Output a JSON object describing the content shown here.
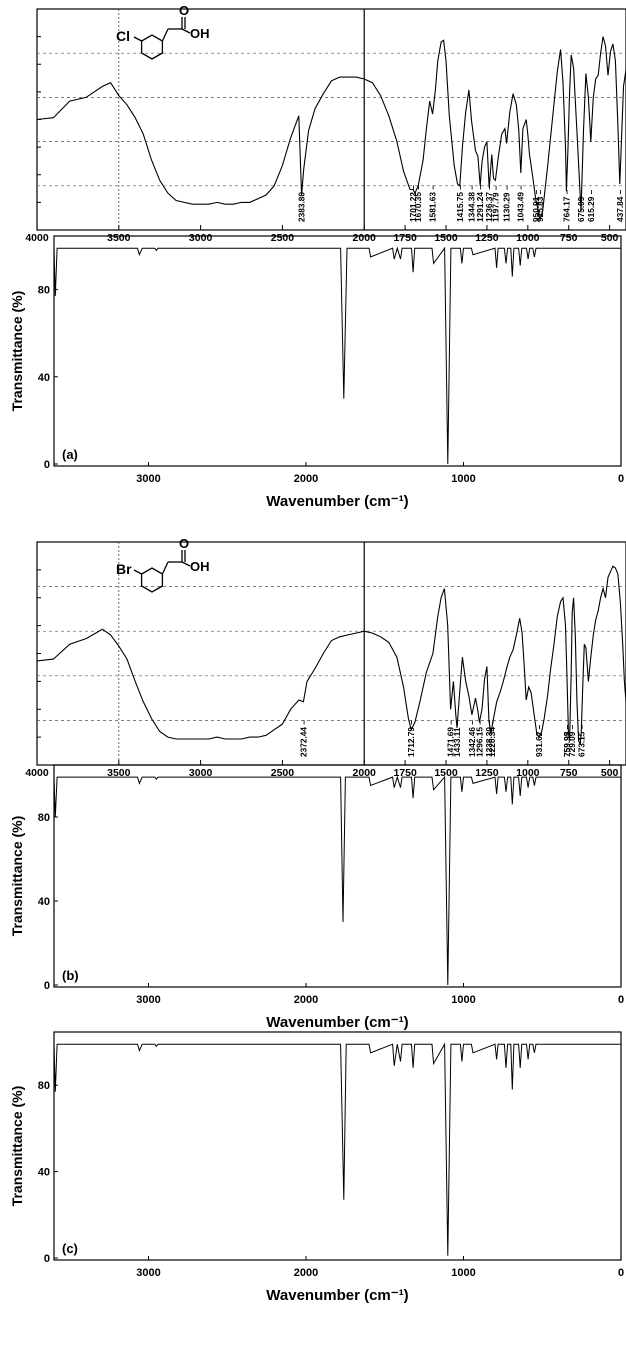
{
  "chart_data": [
    {
      "type": "line",
      "panel": "experimental-chloro",
      "xlim": [
        4000,
        400
      ],
      "x_ticks": [
        4000,
        3500,
        3000,
        2500,
        2000,
        1750,
        1500,
        1250,
        1000,
        750,
        500
      ],
      "structure_label": "Cl",
      "structure_acid": "OH",
      "structure_carbonyl": "O",
      "series": [
        {
          "x": [
            4000,
            3900,
            3800,
            3700,
            3600,
            3550,
            3500,
            3450,
            3400,
            3350,
            3300,
            3250,
            3200,
            3150,
            3100,
            3050,
            3000,
            2950,
            2900,
            2850,
            2800,
            2750,
            2700,
            2650,
            2600,
            2550,
            2500,
            2450,
            2400,
            2383,
            2370,
            2340,
            2300,
            2250,
            2200,
            2150,
            2100,
            2050,
            2000,
            1950,
            1900,
            1850,
            1800,
            1760,
            1720,
            1701,
            1690,
            1670,
            1640,
            1620,
            1600,
            1582,
            1565,
            1550,
            1530,
            1515,
            1500,
            1480,
            1450,
            1430,
            1416,
            1400,
            1380,
            1360,
            1344,
            1320,
            1305,
            1291,
            1280,
            1265,
            1250,
            1236,
            1220,
            1210,
            1198,
            1180,
            1160,
            1140,
            1130,
            1110,
            1090,
            1070,
            1055,
            1043,
            1030,
            1010,
            1000,
            990,
            970,
            951,
            935,
            926,
            910,
            880,
            850,
            820,
            800,
            785,
            770,
            764,
            755,
            745,
            735,
            720,
            705,
            690,
            675,
            660,
            645,
            630,
            615,
            600,
            585,
            570,
            555,
            540,
            525,
            510,
            495,
            480,
            465,
            450,
            438,
            425,
            415,
            400
          ],
          "y": [
            -6.0,
            -5.9,
            -5.0,
            -4.8,
            -4.2,
            -4.0,
            -4.7,
            -5.2,
            -5.9,
            -6.8,
            -8.2,
            -9.3,
            -10.0,
            -10.4,
            -10.5,
            -10.6,
            -10.6,
            -10.6,
            -10.5,
            -10.6,
            -10.6,
            -10.5,
            -10.5,
            -10.3,
            -10.1,
            -9.6,
            -8.5,
            -7.0,
            -5.8,
            -10.1,
            -8.7,
            -6.6,
            -5.4,
            -4.6,
            -3.9,
            -3.7,
            -3.7,
            -3.7,
            -3.8,
            -4.0,
            -4.7,
            -5.8,
            -7.2,
            -8.8,
            -9.8,
            -9.8,
            -10.0,
            -9.6,
            -8.2,
            -6.5,
            -5.0,
            -5.7,
            -4.4,
            -2.8,
            -1.8,
            -1.7,
            -2.8,
            -5.8,
            -8.5,
            -9.5,
            -9.6,
            -7.5,
            -5.6,
            -4.4,
            -6.1,
            -7.7,
            -8.0,
            -9.6,
            -8.3,
            -7.5,
            -7.2,
            -9.7,
            -7.9,
            -9.2,
            -9.3,
            -8.0,
            -6.8,
            -6.5,
            -7.3,
            -5.6,
            -4.6,
            -5.2,
            -6.6,
            -8.9,
            -6.5,
            -6.0,
            -6.8,
            -7.9,
            -9.1,
            -10.4,
            -11.0,
            -11.4,
            -11.0,
            -8.6,
            -6.0,
            -3.4,
            -2.2,
            -4.0,
            -7.5,
            -9.9,
            -7.7,
            -4.5,
            -2.5,
            -3.2,
            -5.8,
            -8.4,
            -11.0,
            -6.6,
            -3.5,
            -4.8,
            -7.2,
            -4.8,
            -3.8,
            -3.6,
            -2.4,
            -1.5,
            -2.0,
            -3.6,
            -2.3,
            -1.9,
            -2.8,
            -6.2,
            -9.5,
            -6.5,
            -4.2,
            -3.3
          ]
        }
      ],
      "annotations": [
        "2383.80",
        "1701.22",
        "1670.35",
        "1581.63",
        "1415.75",
        "1344.38",
        "1291.24",
        "1236.37",
        "1197.79",
        "1130.29",
        "1043.49",
        "950.91",
        "925.83",
        "764.17",
        "675.09",
        "615.29",
        "437.84"
      ]
    },
    {
      "type": "line",
      "panel": "computed-a",
      "xlim": [
        3600,
        0
      ],
      "ylim": [
        0,
        100
      ],
      "x_ticks": [
        3000,
        2000,
        1000,
        0
      ],
      "y_ticks": [
        0,
        40,
        80
      ],
      "xlabel": "Wavenumber (cm⁻¹)",
      "ylabel": "Transmittance (%)",
      "panel_label": "(a)",
      "series": [
        {
          "x": [
            3600,
            3592,
            3580,
            3560,
            3540,
            3070,
            3058,
            3040,
            2960,
            2950,
            2940,
            1780,
            1760,
            1740,
            1600,
            1590,
            1450,
            1440,
            1420,
            1400,
            1390,
            1330,
            1320,
            1310,
            1200,
            1190,
            1120,
            1100,
            1080,
            1020,
            1010,
            1000,
            950,
            940,
            800,
            790,
            780,
            770,
            740,
            730,
            720,
            700,
            690,
            680,
            650,
            640,
            630,
            600,
            590,
            580,
            560,
            550,
            540,
            400,
            0
          ],
          "y": [
            99,
            77,
            99,
            99,
            99,
            99,
            96,
            99,
            99,
            98,
            99,
            99,
            30,
            99,
            99,
            95,
            99,
            94,
            99,
            94,
            99,
            99,
            88,
            99,
            99,
            92,
            99,
            0,
            99,
            99,
            92,
            99,
            99,
            96,
            99,
            90,
            99,
            99,
            99,
            92,
            99,
            99,
            86,
            99,
            99,
            91,
            99,
            99,
            94,
            99,
            99,
            95,
            99,
            99,
            99
          ]
        }
      ]
    },
    {
      "type": "line",
      "panel": "experimental-bromo",
      "xlim": [
        4000,
        400
      ],
      "x_ticks": [
        4000,
        3500,
        3000,
        2500,
        2000,
        1750,
        1500,
        1250,
        1000,
        750,
        500
      ],
      "structure_label": "Br",
      "structure_acid": "OH",
      "structure_carbonyl": "O",
      "series": [
        {
          "x": [
            4000,
            3900,
            3800,
            3700,
            3600,
            3550,
            3500,
            3450,
            3400,
            3350,
            3300,
            3250,
            3200,
            3150,
            3100,
            3050,
            3000,
            2950,
            2900,
            2850,
            2800,
            2750,
            2700,
            2650,
            2600,
            2550,
            2500,
            2450,
            2400,
            2372,
            2350,
            2300,
            2250,
            2200,
            2150,
            2100,
            2050,
            2000,
            1950,
            1900,
            1850,
            1800,
            1760,
            1730,
            1713,
            1690,
            1660,
            1620,
            1580,
            1550,
            1530,
            1510,
            1490,
            1472,
            1455,
            1440,
            1433,
            1420,
            1400,
            1380,
            1360,
            1342,
            1320,
            1305,
            1296,
            1280,
            1265,
            1250,
            1238,
            1225,
            1210,
            1190,
            1170,
            1150,
            1130,
            1110,
            1090,
            1070,
            1050,
            1035,
            1020,
            1010,
            995,
            980,
            960,
            945,
            932,
            915,
            900,
            880,
            860,
            840,
            820,
            800,
            785,
            770,
            760,
            752,
            745,
            735,
            729,
            720,
            710,
            700,
            690,
            680,
            673,
            665,
            655,
            645,
            630,
            615,
            600,
            585,
            570,
            555,
            540,
            525,
            510,
            495,
            480,
            465,
            450,
            435,
            420,
            410,
            400
          ],
          "y": [
            -6.4,
            -6.3,
            -5.5,
            -5.2,
            -4.7,
            -5.0,
            -5.6,
            -6.3,
            -7.5,
            -8.6,
            -9.5,
            -10.2,
            -10.5,
            -10.6,
            -10.6,
            -10.6,
            -10.6,
            -10.6,
            -10.5,
            -10.6,
            -10.6,
            -10.6,
            -10.5,
            -10.5,
            -10.4,
            -10.1,
            -9.8,
            -9.0,
            -8.5,
            -8.6,
            -7.5,
            -6.8,
            -6.0,
            -5.3,
            -5.1,
            -5.0,
            -4.9,
            -4.8,
            -4.9,
            -5.1,
            -5.4,
            -6.2,
            -7.8,
            -9.5,
            -10.1,
            -9.7,
            -8.6,
            -7.0,
            -6.0,
            -4.0,
            -3.0,
            -2.5,
            -4.5,
            -9.0,
            -7.5,
            -9.3,
            -10.0,
            -8.5,
            -6.2,
            -7.5,
            -8.3,
            -9.3,
            -8.4,
            -9.1,
            -9.7,
            -9.0,
            -7.4,
            -6.7,
            -9.6,
            -10.3,
            -9.5,
            -8.6,
            -8.1,
            -7.5,
            -6.8,
            -6.2,
            -5.8,
            -5.0,
            -4.1,
            -4.9,
            -7.0,
            -8.5,
            -7.8,
            -8.1,
            -9.4,
            -10.3,
            -10.5,
            -10.2,
            -9.5,
            -8.3,
            -6.8,
            -5.5,
            -4.0,
            -3.2,
            -3.0,
            -4.5,
            -7.5,
            -10.2,
            -10.7,
            -7.0,
            -3.8,
            -3.0,
            -5.0,
            -8.5,
            -10.7,
            -10.9,
            -10.2,
            -8.0,
            -5.5,
            -5.7,
            -7.5,
            -6.2,
            -5.0,
            -4.2,
            -3.7,
            -3.0,
            -2.5,
            -3.0,
            -1.9,
            -1.6,
            -1.3,
            -1.4,
            -1.7,
            -3.2,
            -5.5,
            -7.5,
            -8.6
          ]
        }
      ],
      "annotations": [
        "2372.44",
        "1712.79",
        "1471.69",
        "1433.11",
        "1342.46",
        "1296.15",
        "1238.30",
        "1220.34",
        "931.62",
        "759.95",
        "759.92",
        "729.09",
        "673.15"
      ]
    },
    {
      "type": "line",
      "panel": "computed-b",
      "xlim": [
        3600,
        0
      ],
      "ylim": [
        0,
        100
      ],
      "x_ticks": [
        3000,
        2000,
        1000,
        0
      ],
      "y_ticks": [
        0,
        40,
        80
      ],
      "xlabel": "Wavenumber (cm⁻¹)",
      "ylabel": "Transmittance (%)",
      "panel_label": "(b)",
      "series": [
        {
          "x": [
            3600,
            3592,
            3580,
            3560,
            3540,
            3070,
            3058,
            3040,
            2960,
            2950,
            2940,
            1780,
            1765,
            1750,
            1600,
            1590,
            1450,
            1440,
            1420,
            1400,
            1390,
            1330,
            1320,
            1310,
            1200,
            1190,
            1120,
            1100,
            1080,
            1020,
            1010,
            1000,
            950,
            940,
            800,
            790,
            780,
            770,
            740,
            730,
            720,
            700,
            690,
            680,
            650,
            640,
            630,
            600,
            590,
            580,
            560,
            550,
            540,
            400,
            0
          ],
          "y": [
            99,
            80,
            99,
            99,
            99,
            99,
            96,
            99,
            99,
            98,
            99,
            99,
            30,
            99,
            99,
            95,
            99,
            94,
            99,
            94,
            99,
            99,
            89,
            99,
            99,
            93,
            99,
            0,
            99,
            99,
            92,
            99,
            99,
            96,
            99,
            91,
            99,
            99,
            99,
            92,
            99,
            99,
            86,
            99,
            99,
            90,
            99,
            99,
            94,
            99,
            99,
            95,
            99,
            99,
            99
          ]
        }
      ]
    },
    {
      "type": "line",
      "panel": "computed-c",
      "xlim": [
        3600,
        0
      ],
      "ylim": [
        0,
        100
      ],
      "x_ticks": [
        3000,
        2000,
        1000,
        0
      ],
      "y_ticks": [
        0,
        40,
        80
      ],
      "xlabel": "Wavenumber (cm⁻¹)",
      "ylabel": "Transmittance (%)",
      "panel_label": "(c)",
      "series": [
        {
          "x": [
            3600,
            3592,
            3580,
            3560,
            3540,
            3070,
            3058,
            3040,
            2960,
            2950,
            2940,
            1780,
            1760,
            1745,
            1600,
            1590,
            1450,
            1440,
            1420,
            1400,
            1390,
            1330,
            1320,
            1310,
            1200,
            1190,
            1120,
            1100,
            1080,
            1020,
            1010,
            1000,
            950,
            940,
            800,
            790,
            780,
            770,
            740,
            730,
            720,
            700,
            690,
            680,
            650,
            640,
            630,
            600,
            590,
            580,
            560,
            550,
            540,
            400,
            0
          ],
          "y": [
            99,
            77,
            99,
            99,
            99,
            99,
            96,
            99,
            99,
            98,
            99,
            99,
            27,
            99,
            99,
            95,
            99,
            89,
            99,
            91,
            99,
            99,
            88,
            99,
            99,
            90,
            99,
            1,
            99,
            99,
            91,
            99,
            99,
            95,
            99,
            92,
            99,
            99,
            99,
            88,
            99,
            99,
            78,
            99,
            99,
            88,
            99,
            99,
            92,
            99,
            99,
            95,
            99,
            99,
            99
          ]
        }
      ]
    }
  ]
}
